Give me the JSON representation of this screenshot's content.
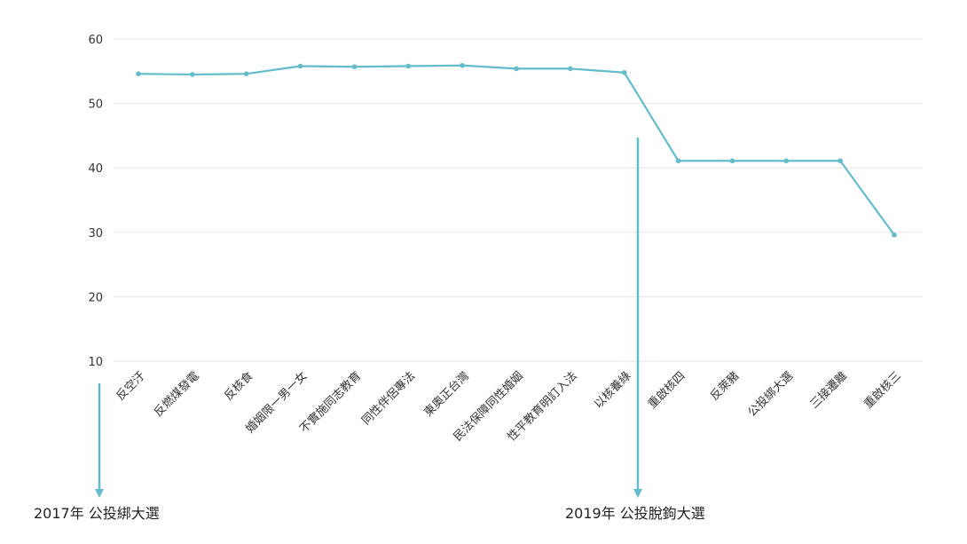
{
  "colors": {
    "series": "#64bccb",
    "grid": "#e6e6e6",
    "text": "#333333",
    "annotation": "#64bccb"
  },
  "chart_data": {
    "type": "line",
    "title": "",
    "xlabel": "",
    "ylabel": "",
    "ylim": [
      10,
      60
    ],
    "yticks": [
      60,
      50,
      40,
      30,
      20,
      10
    ],
    "grid": true,
    "categories": [
      "反空汙",
      "反燃煤發電",
      "反核食",
      "婚姻限一男一女",
      "不實施同志教育",
      "同性伴侶專法",
      "東奧正台灣",
      "民法保障同性婚姻",
      "性平教育明訂入法",
      "以核養綠",
      "重啟核四",
      "反萊豬",
      "公投綁大選",
      "三接遷離",
      "重啟核三"
    ],
    "series": [
      {
        "values": [
          54.6,
          54.5,
          54.6,
          55.8,
          55.7,
          55.8,
          55.9,
          55.4,
          55.4,
          54.8,
          41.1,
          41.1,
          41.1,
          41.1,
          29.6
        ]
      }
    ],
    "annotations": [
      {
        "text": "2017年 公投綁大選",
        "index": 0,
        "position": "before"
      },
      {
        "text": "2019年 公投脫鉤大選",
        "index": 9,
        "position": "after"
      }
    ]
  }
}
